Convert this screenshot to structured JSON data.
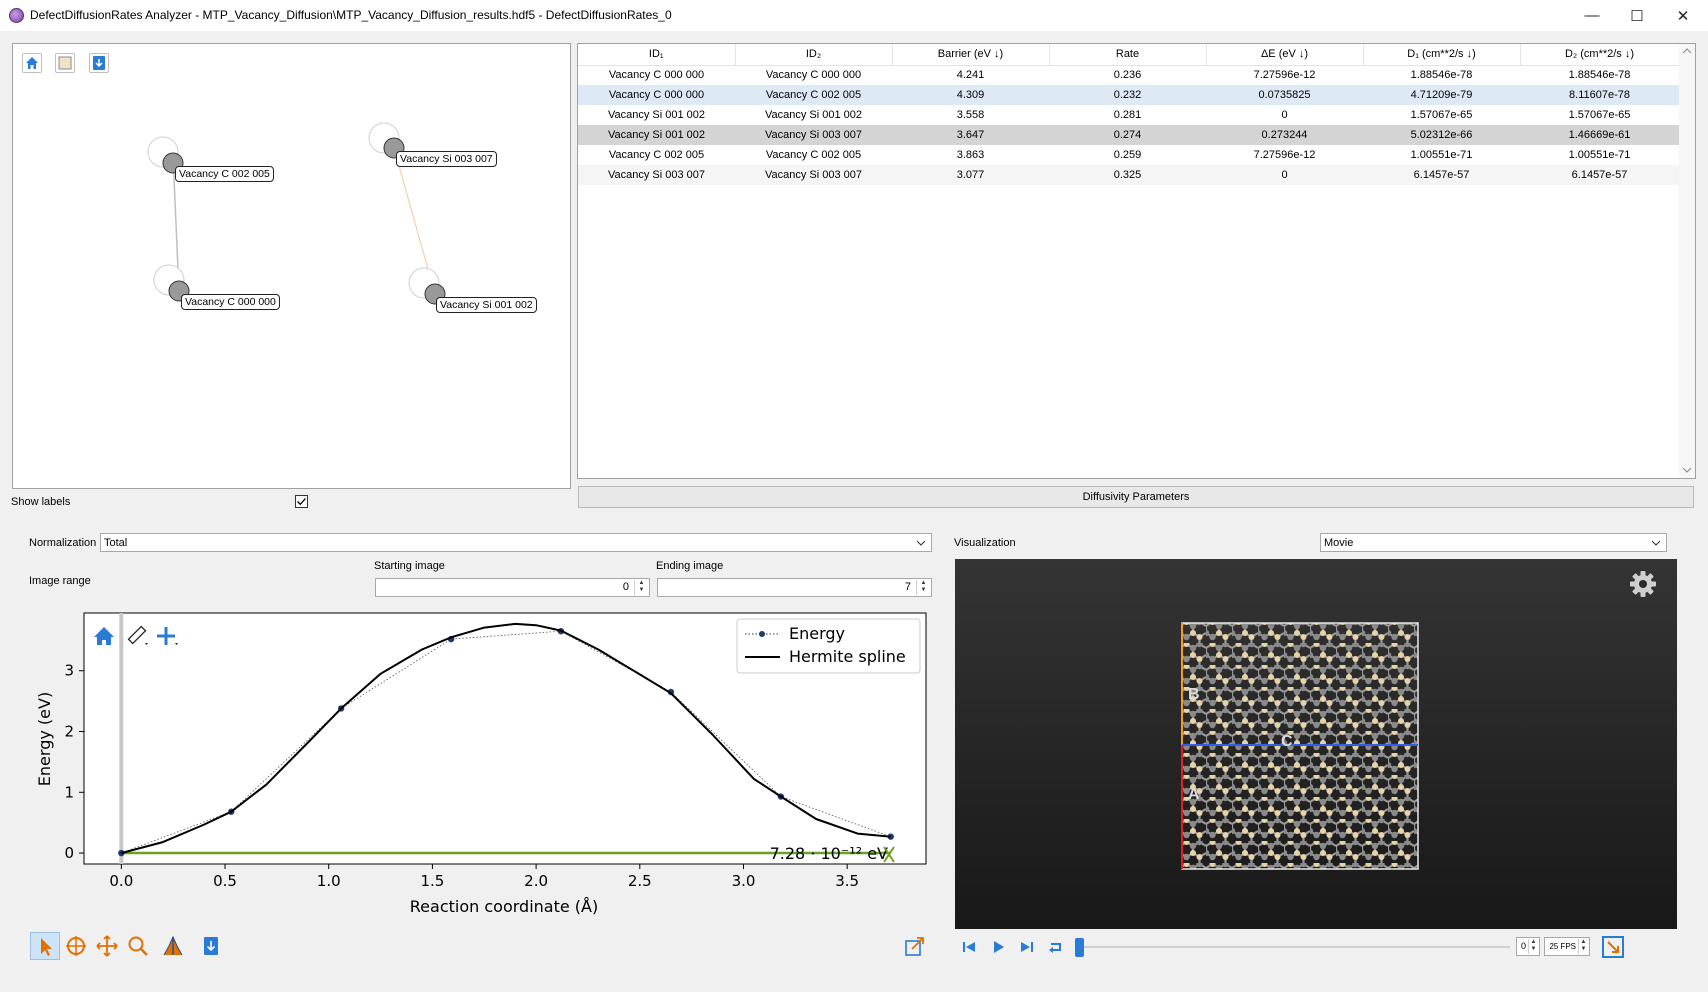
{
  "window": {
    "title": "DefectDiffusionRates Analyzer - MTP_Vacancy_Diffusion\\MTP_Vacancy_Diffusion_results.hdf5 - DefectDiffusionRates_0",
    "minimize": "—",
    "maximize": "☐",
    "close": "✕"
  },
  "graph": {
    "nodes": [
      {
        "label": "Vacancy C 002 005"
      },
      {
        "label": "Vacancy C 000 000"
      },
      {
        "label": "Vacancy Si 003 007"
      },
      {
        "label": "Vacancy Si 001 002"
      }
    ],
    "edge_colors": {
      "carbon": "#c0c0c0",
      "silicon": "#f5c89a"
    },
    "show_labels_label": "Show labels",
    "show_labels_checked": true
  },
  "table": {
    "headers": [
      "ID₁",
      "ID₂",
      "Barrier (eV ↓)",
      "Rate",
      "ΔE (eV ↓)",
      "D₁ (cm**2/s ↓)",
      "D₂ (cm**2/s ↓)"
    ],
    "rows": [
      [
        "Vacancy C 000 000",
        "Vacancy C 000 000",
        "4.241",
        "0.236",
        "7.27596e-12",
        "1.88546e-78",
        "1.88546e-78"
      ],
      [
        "Vacancy C 000 000",
        "Vacancy C 002 005",
        "4.309",
        "0.232",
        "0.0735825",
        "4.71209e-79",
        "8.11607e-78"
      ],
      [
        "Vacancy Si 001 002",
        "Vacancy Si 001 002",
        "3.558",
        "0.281",
        "0",
        "1.57067e-65",
        "1.57067e-65"
      ],
      [
        "Vacancy Si 001 002",
        "Vacancy Si 003 007",
        "3.647",
        "0.274",
        "0.273244",
        "5.02312e-66",
        "1.46669e-61"
      ],
      [
        "Vacancy C 002 005",
        "Vacancy C 002 005",
        "3.863",
        "0.259",
        "7.27596e-12",
        "1.00551e-71",
        "1.00551e-71"
      ],
      [
        "Vacancy Si 003 007",
        "Vacancy Si 003 007",
        "3.077",
        "0.325",
        "0",
        "6.1457e-57",
        "6.1457e-57"
      ]
    ],
    "diffusivity_button": "Diffusivity Parameters"
  },
  "controls": {
    "normalization_label": "Normalization",
    "normalization_value": "Total",
    "image_range_label": "Image range",
    "starting_image_label": "Starting image",
    "starting_image_value": "0",
    "ending_image_label": "Ending image",
    "ending_image_value": "7",
    "visualization_label": "Visualization",
    "visualization_value": "Movie"
  },
  "chart_data": {
    "type": "line",
    "xlabel": "Reaction coordinate (Å)",
    "ylabel": "Energy (eV)",
    "xlim": [
      -0.18,
      3.88
    ],
    "ylim": [
      -0.18,
      3.95
    ],
    "xticks": [
      "0.0",
      "0.5",
      "1.0",
      "1.5",
      "2.0",
      "2.5",
      "3.0",
      "3.5"
    ],
    "yticks": [
      "0",
      "1",
      "2",
      "3"
    ],
    "legend_position": "top-right",
    "series": [
      {
        "name": "Energy",
        "style": "dotted-markers",
        "color": "#1f3a6e",
        "x": [
          0.0,
          0.53,
          1.06,
          1.59,
          2.12,
          2.65,
          3.18,
          3.71
        ],
        "y": [
          0.0,
          0.68,
          2.38,
          3.52,
          3.65,
          2.65,
          0.93,
          0.27
        ]
      },
      {
        "name": "Hermite spline",
        "style": "solid",
        "color": "#000000",
        "x": [
          0.0,
          0.2,
          0.4,
          0.53,
          0.7,
          0.9,
          1.06,
          1.25,
          1.45,
          1.59,
          1.75,
          1.9,
          2.0,
          2.12,
          2.3,
          2.5,
          2.65,
          2.85,
          3.05,
          3.18,
          3.35,
          3.55,
          3.71
        ],
        "y": [
          0.0,
          0.18,
          0.47,
          0.68,
          1.13,
          1.82,
          2.38,
          2.95,
          3.35,
          3.55,
          3.71,
          3.77,
          3.75,
          3.66,
          3.35,
          2.94,
          2.63,
          1.95,
          1.22,
          0.93,
          0.56,
          0.32,
          0.27
        ]
      }
    ],
    "annotation": "7.28 · 10⁻¹² eV",
    "baseline_color": "#6aa121"
  },
  "viz": {
    "labels": [
      "A",
      "B",
      "C"
    ]
  },
  "playback": {
    "frame_value": "0",
    "fps_value": "25 FPS"
  }
}
